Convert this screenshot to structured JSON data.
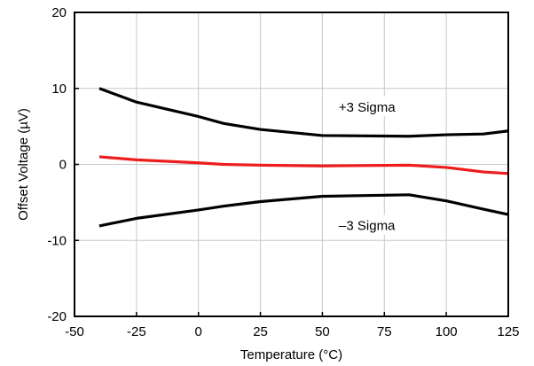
{
  "chart_data": {
    "type": "line",
    "title": "",
    "xlabel": "Temperature (°C)",
    "ylabel": "Offset Voltage (µV)",
    "xlim": [
      -50,
      125
    ],
    "ylim": [
      -20,
      20
    ],
    "x_ticks": [
      -50,
      -25,
      0,
      25,
      50,
      75,
      100,
      125
    ],
    "x_tick_labels": [
      "-50",
      "-25",
      "0",
      "25",
      "50",
      "75",
      "100",
      "125"
    ],
    "y_ticks": [
      -20,
      -10,
      0,
      10,
      20
    ],
    "y_tick_labels": [
      "-20",
      "-10",
      "0",
      "10",
      "20"
    ],
    "grid": true,
    "legend": "none",
    "series": [
      {
        "label": "+3 Sigma",
        "color": "#000000",
        "points": [
          [
            -40,
            10.0
          ],
          [
            -25,
            8.2
          ],
          [
            0,
            6.3
          ],
          [
            10,
            5.4
          ],
          [
            25,
            4.6
          ],
          [
            50,
            3.8
          ],
          [
            85,
            3.7
          ],
          [
            100,
            3.9
          ],
          [
            115,
            4.0
          ],
          [
            125,
            4.4
          ]
        ]
      },
      {
        "label": "",
        "color": "#ee1c1c",
        "points": [
          [
            -40,
            1.0
          ],
          [
            -25,
            0.6
          ],
          [
            0,
            0.2
          ],
          [
            10,
            0.0
          ],
          [
            25,
            -0.1
          ],
          [
            50,
            -0.2
          ],
          [
            85,
            -0.1
          ],
          [
            100,
            -0.4
          ],
          [
            115,
            -1.0
          ],
          [
            125,
            -1.2
          ]
        ]
      },
      {
        "label": "–3 Sigma",
        "color": "#000000",
        "points": [
          [
            -40,
            -8.1
          ],
          [
            -25,
            -7.1
          ],
          [
            0,
            -6.0
          ],
          [
            10,
            -5.5
          ],
          [
            25,
            -4.9
          ],
          [
            50,
            -4.2
          ],
          [
            85,
            -4.0
          ],
          [
            100,
            -4.8
          ],
          [
            115,
            -5.9
          ],
          [
            125,
            -6.6
          ]
        ]
      }
    ],
    "annotations": [
      {
        "text": "+3 Sigma",
        "x": 68,
        "y": 7.3
      },
      {
        "text": "–3 Sigma",
        "x": 68,
        "y": -8.3
      }
    ]
  }
}
